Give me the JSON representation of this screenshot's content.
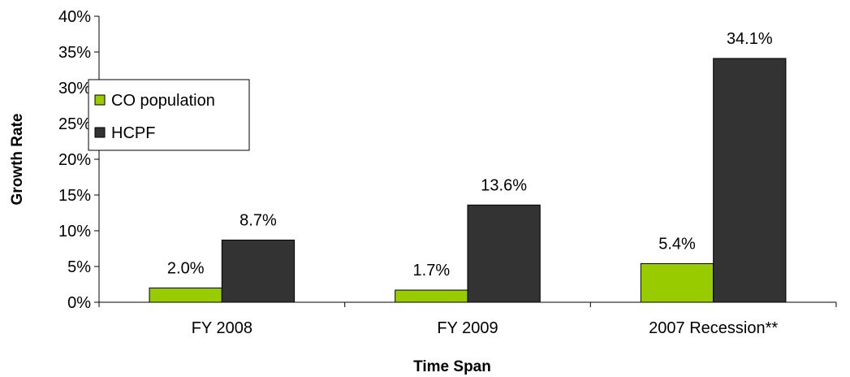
{
  "chart_data": {
    "type": "bar",
    "categories": [
      "FY 2008",
      "FY 2009",
      "2007 Recession**"
    ],
    "series": [
      {
        "name": "CO population",
        "values": [
          2.0,
          1.7,
          5.4
        ],
        "labels": [
          "2.0%",
          "1.7%",
          "5.4%"
        ],
        "color": "#99cc00"
      },
      {
        "name": "HCPF",
        "values": [
          8.7,
          13.6,
          34.1
        ],
        "labels": [
          "8.7%",
          "13.6%",
          "34.1%"
        ],
        "color": "#333333"
      }
    ],
    "title": "",
    "xlabel": "Time Span",
    "ylabel": "Growth Rate",
    "ylim": [
      0,
      40
    ],
    "yticks": [
      {
        "value": 0,
        "label": "0%"
      },
      {
        "value": 5,
        "label": "5%"
      },
      {
        "value": 10,
        "label": "10%"
      },
      {
        "value": 15,
        "label": "15%"
      },
      {
        "value": 20,
        "label": "20%"
      },
      {
        "value": 25,
        "label": "25%"
      },
      {
        "value": 30,
        "label": "30%"
      },
      {
        "value": 35,
        "label": "35%"
      },
      {
        "value": 40,
        "label": "40%"
      }
    ],
    "grid": false,
    "legend_position": "upper-left"
  }
}
